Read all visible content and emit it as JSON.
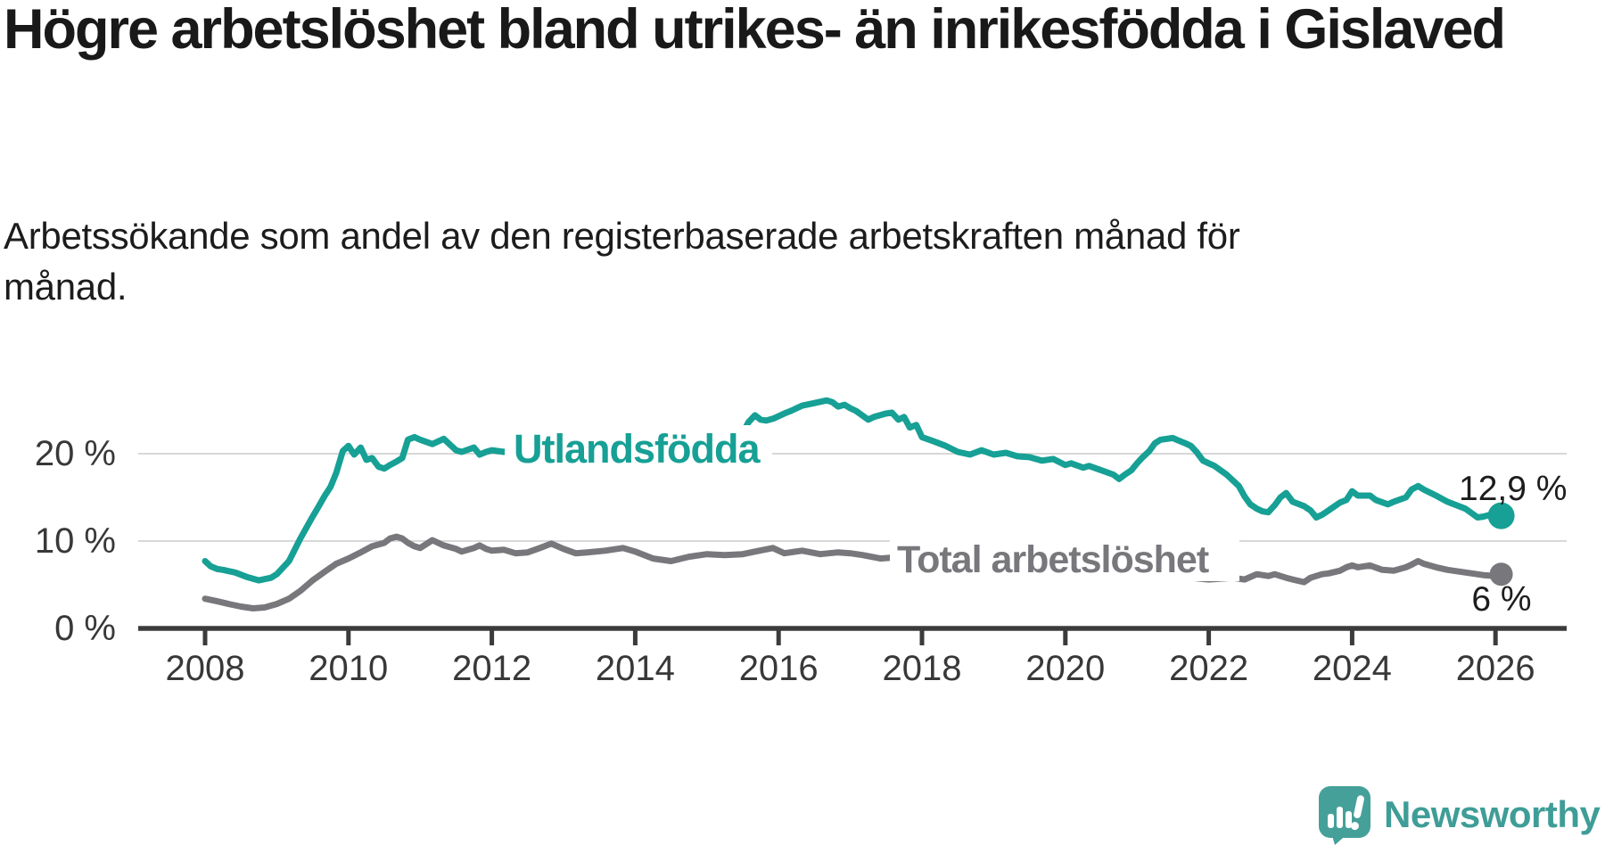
{
  "title": "Högre arbetslöshet bland utrikes- än inrikesfödda i Gislaved",
  "subtitle": "Arbetssökande som andel av den registerbaserade arbetskraften månad för månad.",
  "branding": {
    "logo_text": "Newsworthy",
    "logo_color": "#3f9d97"
  },
  "chart_data": {
    "type": "line",
    "title": "Högre arbetslöshet bland utrikes- än inrikesfödda i Gislaved",
    "xlabel": "",
    "ylabel": "",
    "grid": "horizontal",
    "x_axis": {
      "range": [
        2007.6,
        2027.0
      ],
      "ticks": [
        2008,
        2010,
        2012,
        2014,
        2016,
        2018,
        2020,
        2022,
        2024,
        2026
      ],
      "tick_labels": [
        "2008",
        "2010",
        "2012",
        "2014",
        "2016",
        "2018",
        "2020",
        "2022",
        "2024",
        "2026"
      ]
    },
    "y_axis": {
      "range": [
        0,
        28
      ],
      "ticks": [
        0,
        10,
        20
      ],
      "tick_labels": [
        "0 %",
        "10 %",
        "20 %"
      ]
    },
    "colors": {
      "axis": "#3b3b3b",
      "gridline": "#d8d8d8",
      "label_background": "#ffffff"
    },
    "series": [
      {
        "name": "Total arbetslöshet",
        "color": "#78787c",
        "end_label": "6 %",
        "end_value": 6.2,
        "points": [
          [
            2008.0,
            3.4
          ],
          [
            2008.17,
            3.1
          ],
          [
            2008.33,
            2.8
          ],
          [
            2008.5,
            2.5
          ],
          [
            2008.67,
            2.3
          ],
          [
            2008.83,
            2.4
          ],
          [
            2009.0,
            2.8
          ],
          [
            2009.17,
            3.4
          ],
          [
            2009.33,
            4.3
          ],
          [
            2009.5,
            5.5
          ],
          [
            2009.67,
            6.5
          ],
          [
            2009.83,
            7.4
          ],
          [
            2010.0,
            8.0
          ],
          [
            2010.17,
            8.7
          ],
          [
            2010.33,
            9.4
          ],
          [
            2010.5,
            9.8
          ],
          [
            2010.58,
            10.3
          ],
          [
            2010.67,
            10.5
          ],
          [
            2010.75,
            10.3
          ],
          [
            2010.83,
            9.8
          ],
          [
            2010.92,
            9.4
          ],
          [
            2011.0,
            9.2
          ],
          [
            2011.17,
            10.1
          ],
          [
            2011.33,
            9.5
          ],
          [
            2011.5,
            9.1
          ],
          [
            2011.58,
            8.8
          ],
          [
            2011.75,
            9.2
          ],
          [
            2011.83,
            9.5
          ],
          [
            2011.92,
            9.1
          ],
          [
            2012.0,
            8.9
          ],
          [
            2012.17,
            9.0
          ],
          [
            2012.33,
            8.6
          ],
          [
            2012.5,
            8.7
          ],
          [
            2012.67,
            9.2
          ],
          [
            2012.83,
            9.7
          ],
          [
            2013.0,
            9.1
          ],
          [
            2013.17,
            8.6
          ],
          [
            2013.33,
            8.7
          ],
          [
            2013.58,
            8.9
          ],
          [
            2013.83,
            9.2
          ],
          [
            2014.0,
            8.8
          ],
          [
            2014.25,
            8.0
          ],
          [
            2014.5,
            7.7
          ],
          [
            2014.75,
            8.2
          ],
          [
            2015.0,
            8.5
          ],
          [
            2015.25,
            8.4
          ],
          [
            2015.5,
            8.5
          ],
          [
            2015.67,
            8.8
          ],
          [
            2015.92,
            9.2
          ],
          [
            2016.08,
            8.6
          ],
          [
            2016.33,
            8.9
          ],
          [
            2016.58,
            8.5
          ],
          [
            2016.83,
            8.7
          ],
          [
            2017.0,
            8.6
          ],
          [
            2017.17,
            8.4
          ],
          [
            2017.42,
            8.0
          ],
          [
            2017.58,
            8.1
          ],
          [
            2017.75,
            7.9
          ],
          [
            2017.92,
            7.6
          ],
          [
            2018.17,
            7.3
          ],
          [
            2018.42,
            7.1
          ],
          [
            2018.67,
            6.8
          ],
          [
            2019.0,
            6.6
          ],
          [
            2019.25,
            6.4
          ],
          [
            2019.5,
            6.2
          ],
          [
            2019.83,
            6.4
          ],
          [
            2020.0,
            6.8
          ],
          [
            2020.17,
            7.5
          ],
          [
            2020.33,
            8.0
          ],
          [
            2020.5,
            8.3
          ],
          [
            2020.67,
            8.1
          ],
          [
            2020.83,
            7.8
          ],
          [
            2021.0,
            7.0
          ],
          [
            2021.08,
            6.4
          ],
          [
            2021.25,
            6.2
          ],
          [
            2021.5,
            5.9
          ],
          [
            2021.75,
            5.8
          ],
          [
            2022.0,
            5.6
          ],
          [
            2022.17,
            5.7
          ],
          [
            2022.33,
            5.8
          ],
          [
            2022.5,
            5.6
          ],
          [
            2022.67,
            6.2
          ],
          [
            2022.83,
            6.0
          ],
          [
            2022.92,
            6.2
          ],
          [
            2023.08,
            5.8
          ],
          [
            2023.17,
            5.6
          ],
          [
            2023.33,
            5.3
          ],
          [
            2023.42,
            5.8
          ],
          [
            2023.58,
            6.2
          ],
          [
            2023.67,
            6.3
          ],
          [
            2023.83,
            6.6
          ],
          [
            2023.92,
            7.0
          ],
          [
            2024.0,
            7.2
          ],
          [
            2024.08,
            7.0
          ],
          [
            2024.25,
            7.2
          ],
          [
            2024.42,
            6.7
          ],
          [
            2024.58,
            6.6
          ],
          [
            2024.75,
            7.0
          ],
          [
            2024.83,
            7.3
          ],
          [
            2024.92,
            7.7
          ],
          [
            2025.0,
            7.4
          ],
          [
            2025.17,
            7.0
          ],
          [
            2025.33,
            6.7
          ],
          [
            2025.5,
            6.5
          ],
          [
            2025.67,
            6.3
          ],
          [
            2025.83,
            6.1
          ],
          [
            2026.0,
            6.0
          ],
          [
            2026.08,
            6.2
          ]
        ]
      },
      {
        "name": "Utlandsfödda",
        "color": "#17a095",
        "end_label": "12,9 %",
        "end_value": 12.9,
        "points": [
          [
            2008.0,
            7.7
          ],
          [
            2008.08,
            7.1
          ],
          [
            2008.17,
            6.8
          ],
          [
            2008.25,
            6.7
          ],
          [
            2008.42,
            6.4
          ],
          [
            2008.58,
            5.9
          ],
          [
            2008.75,
            5.5
          ],
          [
            2008.92,
            5.8
          ],
          [
            2009.0,
            6.2
          ],
          [
            2009.17,
            7.7
          ],
          [
            2009.33,
            10.3
          ],
          [
            2009.5,
            12.8
          ],
          [
            2009.58,
            13.9
          ],
          [
            2009.67,
            15.2
          ],
          [
            2009.75,
            16.2
          ],
          [
            2009.83,
            17.8
          ],
          [
            2009.92,
            20.3
          ],
          [
            2010.0,
            20.9
          ],
          [
            2010.08,
            19.9
          ],
          [
            2010.17,
            20.7
          ],
          [
            2010.25,
            19.3
          ],
          [
            2010.33,
            19.5
          ],
          [
            2010.42,
            18.5
          ],
          [
            2010.5,
            18.3
          ],
          [
            2010.58,
            18.7
          ],
          [
            2010.67,
            19.1
          ],
          [
            2010.75,
            19.5
          ],
          [
            2010.83,
            21.6
          ],
          [
            2010.92,
            21.9
          ],
          [
            2011.0,
            21.6
          ],
          [
            2011.17,
            21.1
          ],
          [
            2011.33,
            21.7
          ],
          [
            2011.5,
            20.4
          ],
          [
            2011.58,
            20.2
          ],
          [
            2011.75,
            20.7
          ],
          [
            2011.83,
            19.9
          ],
          [
            2011.92,
            20.2
          ],
          [
            2012.0,
            20.4
          ],
          [
            2012.17,
            20.2
          ],
          [
            2012.33,
            20.6
          ],
          [
            2012.5,
            20.3
          ],
          [
            2012.67,
            20.0
          ],
          [
            2012.83,
            19.9
          ],
          [
            2013.0,
            20.1
          ],
          [
            2013.17,
            19.8
          ],
          [
            2013.33,
            19.9
          ],
          [
            2013.5,
            19.6
          ],
          [
            2013.67,
            19.3
          ],
          [
            2013.83,
            19.1
          ],
          [
            2014.0,
            19.0
          ],
          [
            2014.17,
            18.8
          ],
          [
            2014.33,
            18.6
          ],
          [
            2014.5,
            18.7
          ],
          [
            2014.67,
            18.9
          ],
          [
            2014.83,
            19.4
          ],
          [
            2015.0,
            20.0
          ],
          [
            2015.17,
            20.9
          ],
          [
            2015.33,
            22.0
          ],
          [
            2015.42,
            22.6
          ],
          [
            2015.5,
            22.4
          ],
          [
            2015.58,
            23.6
          ],
          [
            2015.67,
            24.4
          ],
          [
            2015.75,
            23.9
          ],
          [
            2015.83,
            23.8
          ],
          [
            2015.92,
            24.0
          ],
          [
            2016.0,
            24.3
          ],
          [
            2016.08,
            24.6
          ],
          [
            2016.17,
            24.9
          ],
          [
            2016.33,
            25.5
          ],
          [
            2016.5,
            25.8
          ],
          [
            2016.67,
            26.1
          ],
          [
            2016.75,
            25.9
          ],
          [
            2016.83,
            25.4
          ],
          [
            2016.92,
            25.6
          ],
          [
            2017.0,
            25.2
          ],
          [
            2017.08,
            24.9
          ],
          [
            2017.25,
            23.9
          ],
          [
            2017.33,
            24.2
          ],
          [
            2017.5,
            24.6
          ],
          [
            2017.58,
            24.7
          ],
          [
            2017.67,
            23.9
          ],
          [
            2017.75,
            24.2
          ],
          [
            2017.83,
            23.0
          ],
          [
            2017.92,
            23.3
          ],
          [
            2018.0,
            21.9
          ],
          [
            2018.17,
            21.4
          ],
          [
            2018.33,
            20.9
          ],
          [
            2018.5,
            20.2
          ],
          [
            2018.67,
            19.9
          ],
          [
            2018.83,
            20.4
          ],
          [
            2019.0,
            19.9
          ],
          [
            2019.17,
            20.1
          ],
          [
            2019.33,
            19.7
          ],
          [
            2019.5,
            19.6
          ],
          [
            2019.67,
            19.2
          ],
          [
            2019.83,
            19.4
          ],
          [
            2020.0,
            18.7
          ],
          [
            2020.08,
            18.9
          ],
          [
            2020.25,
            18.4
          ],
          [
            2020.33,
            18.6
          ],
          [
            2020.5,
            18.1
          ],
          [
            2020.67,
            17.6
          ],
          [
            2020.75,
            17.1
          ],
          [
            2020.83,
            17.6
          ],
          [
            2020.92,
            18.1
          ],
          [
            2021.0,
            18.9
          ],
          [
            2021.08,
            19.6
          ],
          [
            2021.17,
            20.3
          ],
          [
            2021.25,
            21.2
          ],
          [
            2021.33,
            21.6
          ],
          [
            2021.5,
            21.8
          ],
          [
            2021.58,
            21.5
          ],
          [
            2021.67,
            21.2
          ],
          [
            2021.75,
            20.9
          ],
          [
            2021.83,
            20.2
          ],
          [
            2021.92,
            19.2
          ],
          [
            2022.0,
            18.9
          ],
          [
            2022.08,
            18.6
          ],
          [
            2022.25,
            17.6
          ],
          [
            2022.42,
            16.3
          ],
          [
            2022.5,
            15.1
          ],
          [
            2022.58,
            14.2
          ],
          [
            2022.67,
            13.7
          ],
          [
            2022.75,
            13.4
          ],
          [
            2022.83,
            13.3
          ],
          [
            2022.92,
            14.1
          ],
          [
            2023.0,
            15.0
          ],
          [
            2023.08,
            15.5
          ],
          [
            2023.17,
            14.5
          ],
          [
            2023.33,
            14.0
          ],
          [
            2023.42,
            13.5
          ],
          [
            2023.5,
            12.7
          ],
          [
            2023.58,
            13.0
          ],
          [
            2023.67,
            13.5
          ],
          [
            2023.83,
            14.4
          ],
          [
            2023.92,
            14.7
          ],
          [
            2024.0,
            15.7
          ],
          [
            2024.08,
            15.2
          ],
          [
            2024.25,
            15.2
          ],
          [
            2024.33,
            14.7
          ],
          [
            2024.5,
            14.2
          ],
          [
            2024.58,
            14.5
          ],
          [
            2024.75,
            15.0
          ],
          [
            2024.83,
            15.9
          ],
          [
            2024.92,
            16.3
          ],
          [
            2025.0,
            15.9
          ],
          [
            2025.17,
            15.2
          ],
          [
            2025.33,
            14.5
          ],
          [
            2025.42,
            14.2
          ],
          [
            2025.58,
            13.7
          ],
          [
            2025.75,
            12.7
          ],
          [
            2025.83,
            12.8
          ],
          [
            2025.92,
            13.0
          ],
          [
            2026.0,
            13.1
          ],
          [
            2026.08,
            12.9
          ]
        ]
      }
    ]
  }
}
